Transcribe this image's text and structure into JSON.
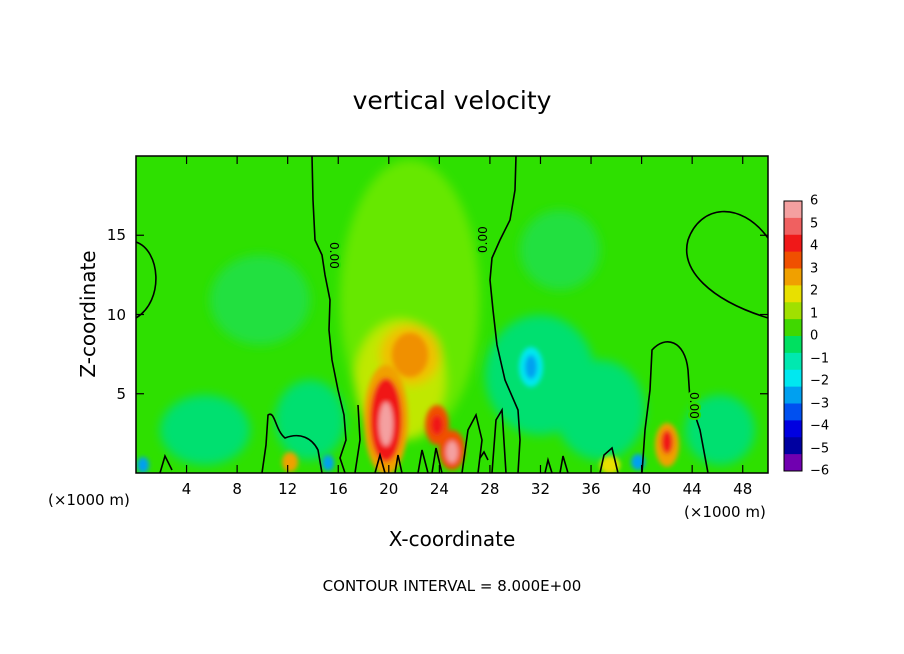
{
  "chart_data": {
    "type": "heatmap",
    "title": "vertical velocity",
    "xlabel": "X-coordinate",
    "ylabel": "Z-coordinate",
    "x_unit": "(×1000 m)",
    "xlim": [
      0,
      50
    ],
    "ylim": [
      0,
      20
    ],
    "x_ticks": [
      4,
      8,
      12,
      16,
      20,
      24,
      28,
      32,
      36,
      40,
      44,
      48
    ],
    "y_ticks": [
      5,
      10,
      15
    ],
    "contour_interval": "CONTOUR INTERVAL = 8.000E+00",
    "contour_label": "0.00",
    "colorbar": {
      "ticks": [
        "6",
        "5",
        "4",
        "3",
        "2",
        "1",
        "0",
        "−1",
        "−2",
        "−3",
        "−4",
        "−5",
        "−6"
      ],
      "colors": [
        "#f4a0a0",
        "#f06060",
        "#f01818",
        "#f05000",
        "#f0a000",
        "#e8e000",
        "#a0e000",
        "#40d800",
        "#00e060",
        "#00e8b0",
        "#00e8f0",
        "#00a0f0",
        "#0050f0",
        "#0000e0",
        "#0000a0",
        "#7000b0"
      ]
    },
    "features": [
      {
        "x": 19.5,
        "z": 3.0,
        "value": 6,
        "label": "updraft core"
      },
      {
        "x": 21.5,
        "z": 7.5,
        "value": 3,
        "label": "updraft"
      },
      {
        "x": 23.5,
        "z": 3.0,
        "value": 4,
        "label": "updraft"
      },
      {
        "x": 25.0,
        "z": 1.3,
        "value": 6,
        "label": "updraft core"
      },
      {
        "x": 42.0,
        "z": 2.0,
        "value": 4,
        "label": "updraft"
      },
      {
        "x": 31.0,
        "z": 6.5,
        "value": -3,
        "label": "downdraft"
      },
      {
        "x": 15.3,
        "z": 0.6,
        "value": -3,
        "label": "downdraft"
      },
      {
        "x": 39.8,
        "z": 0.8,
        "value": -3,
        "label": "downdraft"
      }
    ]
  }
}
